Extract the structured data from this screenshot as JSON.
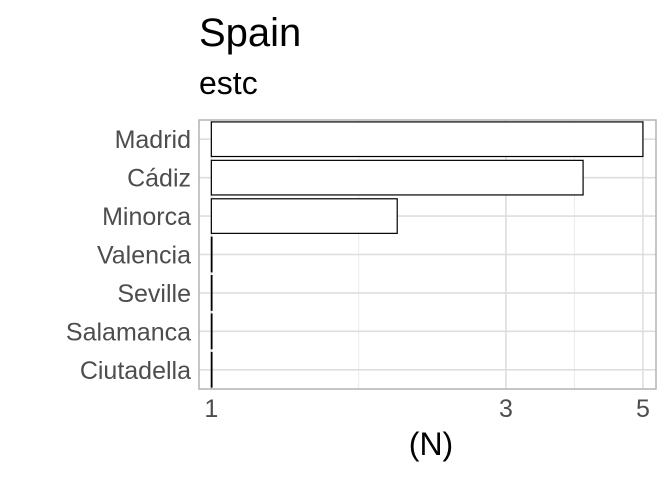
{
  "chart_data": {
    "type": "bar",
    "orientation": "horizontal",
    "title": "Spain",
    "subtitle": "estc",
    "xlabel": "(N)",
    "ylabel": "",
    "x_scale": "log",
    "xlim": [
      0.955,
      5.25
    ],
    "x_ticks": [
      1,
      3,
      5
    ],
    "categories": [
      "Madrid",
      "Cádiz",
      "Minorca",
      "Valencia",
      "Seville",
      "Salamanca",
      "Ciutadella"
    ],
    "values": [
      5,
      4,
      2,
      1,
      1,
      1,
      1
    ],
    "bar_fill": "#ffffff",
    "bar_stroke": "#000000",
    "grid": true,
    "legend": "none"
  }
}
